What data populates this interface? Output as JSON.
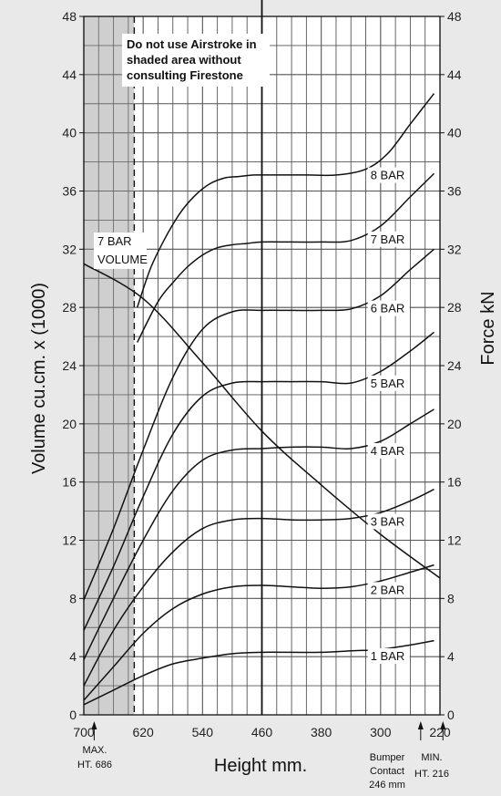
{
  "chart_data": {
    "type": "line",
    "title": "",
    "xlabel": "Height mm.",
    "ylabel_left": "Volume cu.cm. x (1000)",
    "ylabel_right": "Force kN",
    "x_reversed": true,
    "xlim": [
      700,
      220
    ],
    "ylim": [
      0,
      48
    ],
    "x_ticks": [
      700,
      620,
      540,
      460,
      380,
      300,
      220
    ],
    "y_ticks": [
      0,
      4,
      8,
      12,
      16,
      20,
      24,
      28,
      32,
      36,
      40,
      44,
      48
    ],
    "grid": true,
    "shaded_region": {
      "x_from": 700,
      "x_to": 632
    },
    "note": [
      "Do not use Airstroke in",
      "shaded area without",
      "consulting Firestone"
    ],
    "annotations": {
      "max_height": [
        "MAX.",
        "HT. 686"
      ],
      "bumper_contact": [
        "Bumper",
        "Contact",
        "246 mm"
      ],
      "min_height": [
        "MIN.",
        "HT. 216"
      ],
      "volume_label": [
        "7 BAR",
        "VOLUME"
      ]
    },
    "volume_series": {
      "name": "7 BAR VOLUME",
      "x": [
        700,
        620,
        540,
        460,
        380,
        300,
        220
      ],
      "y": [
        31.0,
        28.6,
        24.2,
        19.5,
        15.8,
        12.4,
        9.4
      ]
    },
    "series": [
      {
        "name": "1 BAR",
        "x": [
          700,
          660,
          620,
          580,
          540,
          500,
          460,
          420,
          380,
          340,
          300,
          260,
          228
        ],
        "y": [
          0.7,
          1.7,
          2.7,
          3.5,
          3.9,
          4.2,
          4.3,
          4.3,
          4.3,
          4.4,
          4.5,
          4.8,
          5.1
        ]
      },
      {
        "name": "2 BAR",
        "x": [
          700,
          660,
          620,
          580,
          540,
          500,
          460,
          420,
          380,
          340,
          300,
          260,
          228
        ],
        "y": [
          1.0,
          3.3,
          5.6,
          7.3,
          8.3,
          8.8,
          8.9,
          8.8,
          8.7,
          8.8,
          9.2,
          9.8,
          10.3
        ]
      },
      {
        "name": "3 BAR",
        "x": [
          700,
          660,
          620,
          580,
          540,
          500,
          460,
          420,
          380,
          340,
          300,
          260,
          228
        ],
        "y": [
          2.0,
          5.8,
          8.8,
          11.2,
          12.8,
          13.4,
          13.5,
          13.4,
          13.4,
          13.5,
          13.9,
          14.7,
          15.5
        ]
      },
      {
        "name": "4 BAR",
        "x": [
          700,
          660,
          620,
          580,
          540,
          500,
          460,
          420,
          380,
          340,
          300,
          260,
          228
        ],
        "y": [
          3.8,
          8.0,
          12.0,
          15.4,
          17.5,
          18.2,
          18.3,
          18.4,
          18.4,
          18.3,
          18.8,
          20.0,
          21.0
        ]
      },
      {
        "name": "5 BAR",
        "x": [
          700,
          660,
          620,
          580,
          540,
          500,
          460,
          420,
          380,
          340,
          300,
          260,
          228
        ],
        "y": [
          5.8,
          10.2,
          15.0,
          19.3,
          21.9,
          22.8,
          22.9,
          22.9,
          22.9,
          22.8,
          23.6,
          25.0,
          26.3
        ]
      },
      {
        "name": "6 BAR",
        "x": [
          700,
          660,
          620,
          580,
          540,
          500,
          460,
          420,
          380,
          340,
          300,
          260,
          228
        ],
        "y": [
          7.9,
          12.8,
          18.2,
          23.2,
          26.5,
          27.7,
          27.8,
          27.8,
          27.8,
          27.9,
          28.8,
          30.6,
          32.0
        ]
      },
      {
        "name": "7 BAR",
        "x": [
          628,
          600,
          580,
          560,
          540,
          520,
          500,
          480,
          460,
          420,
          380,
          340,
          300,
          260,
          228
        ],
        "y": [
          25.6,
          28.4,
          29.7,
          30.8,
          31.6,
          32.1,
          32.3,
          32.4,
          32.5,
          32.5,
          32.5,
          32.6,
          33.6,
          35.6,
          37.2
        ]
      },
      {
        "name": "8 BAR",
        "x": [
          628,
          610,
          590,
          570,
          550,
          530,
          510,
          490,
          470,
          440,
          400,
          360,
          320,
          290,
          260,
          228
        ],
        "y": [
          28.0,
          30.7,
          32.8,
          34.5,
          35.7,
          36.5,
          36.9,
          37.0,
          37.1,
          37.1,
          37.1,
          37.1,
          37.5,
          38.6,
          40.6,
          42.7
        ]
      }
    ]
  }
}
